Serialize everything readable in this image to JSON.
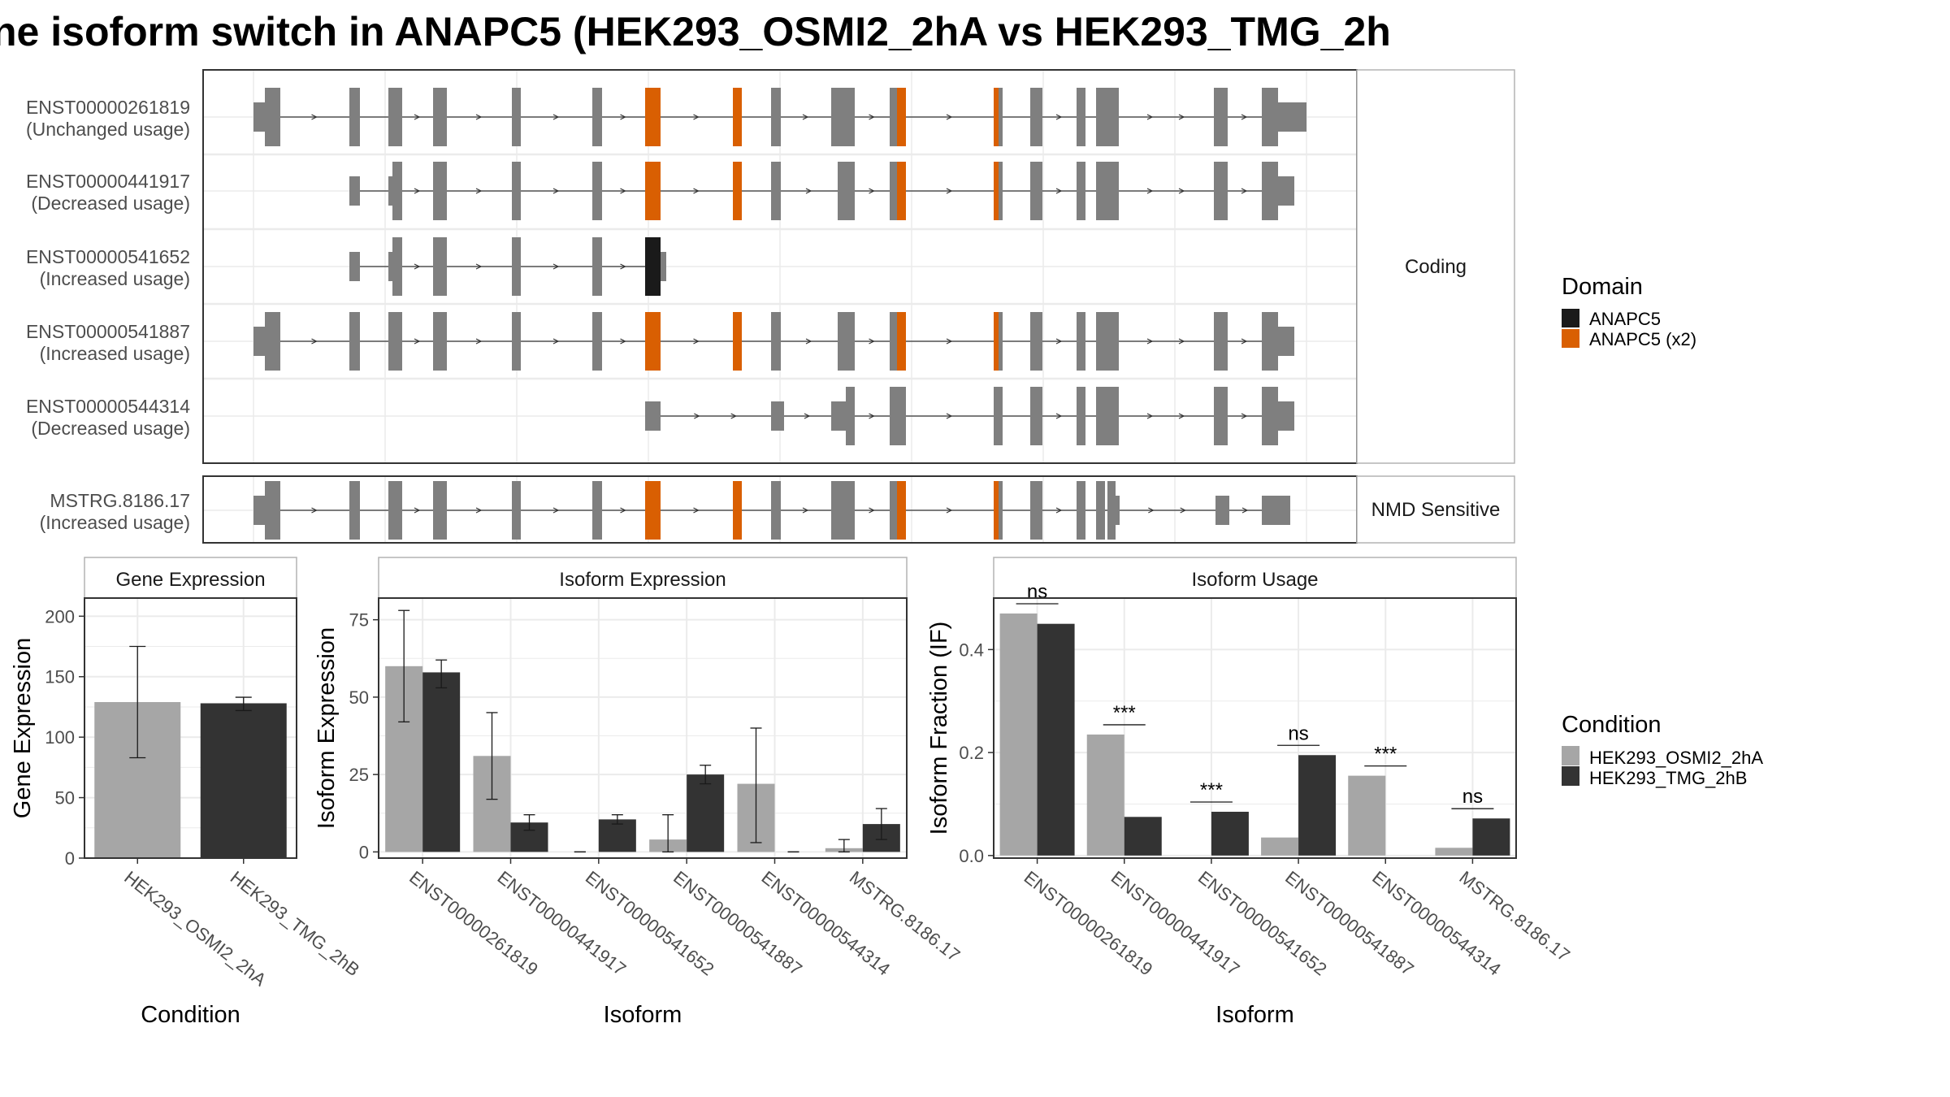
{
  "title": "ne isoform switch in ANAPC5 (HEK293_OSMI2_2hA vs HEK293_TMG_2h",
  "colors": {
    "exon": "#7f7f7f",
    "domain_ANAPC5": "#1a1a1a",
    "domain_ANAPC5_x2": "#d95f02",
    "cond1": "#a6a6a6",
    "cond2": "#333333",
    "grid": "#ebebeb"
  },
  "structure": {
    "coding_strip": "Coding",
    "nmd_strip": "NMD Sensitive",
    "transcripts": [
      {
        "id": "ENST00000261819",
        "usage": "(Unchanged usage)"
      },
      {
        "id": "ENST00000441917",
        "usage": "(Decreased usage)"
      },
      {
        "id": "ENST00000541652",
        "usage": "(Increased usage)"
      },
      {
        "id": "ENST00000541887",
        "usage": "(Increased usage)"
      },
      {
        "id": "ENST00000544314",
        "usage": "(Decreased usage)"
      },
      {
        "id": "MSTRG.8186.17",
        "usage": "(Increased usage)"
      }
    ]
  },
  "legend_domain": {
    "title": "Domain",
    "items": [
      {
        "label": "ANAPC5",
        "color": "#1a1a1a"
      },
      {
        "label": "ANAPC5 (x2)",
        "color": "#d95f02"
      }
    ]
  },
  "legend_condition": {
    "title": "Condition",
    "items": [
      {
        "label": "HEK293_OSMI2_2hA",
        "color": "#a6a6a6"
      },
      {
        "label": "HEK293_TMG_2hB",
        "color": "#333333"
      }
    ]
  },
  "chart_data": [
    {
      "type": "bar",
      "title": "Gene Expression",
      "xlabel": "Condition",
      "ylabel": "Gene Expression",
      "ylim": [
        0,
        215
      ],
      "yticks": [
        0,
        50,
        100,
        150,
        200
      ],
      "categories": [
        "HEK293_OSMI2_2hA",
        "HEK293_TMG_2hB"
      ],
      "values": [
        129,
        128
      ],
      "error_low": [
        83,
        122
      ],
      "error_high": [
        175,
        133
      ]
    },
    {
      "type": "bar",
      "title": "Isoform Expression",
      "xlabel": "Isoform",
      "ylabel": "Isoform Expression",
      "ylim": [
        -2,
        82
      ],
      "yticks": [
        0,
        25,
        50,
        75
      ],
      "categories": [
        "ENST00000261819",
        "ENST00000441917",
        "ENST00000541652",
        "ENST00000541887",
        "ENST00000544314",
        "MSTRG.8186.17"
      ],
      "series": [
        {
          "name": "HEK293_OSMI2_2hA",
          "values": [
            60,
            31,
            0,
            4,
            22,
            1.2
          ],
          "error_low": [
            42,
            17,
            0,
            0,
            3,
            0
          ],
          "error_high": [
            78,
            45,
            0,
            12,
            40,
            4
          ]
        },
        {
          "name": "HEK293_TMG_2hB",
          "values": [
            58,
            9.5,
            10.5,
            25,
            0,
            9
          ],
          "error_low": [
            53,
            7,
            9,
            22,
            0,
            4
          ],
          "error_high": [
            62,
            12,
            12,
            28,
            0,
            14
          ]
        }
      ]
    },
    {
      "type": "bar",
      "title": "Isoform Usage",
      "xlabel": "Isoform",
      "ylabel": "Isoform Fraction (IF)",
      "ylim": [
        -0.005,
        0.5
      ],
      "yticks": [
        0.0,
        0.2,
        0.4
      ],
      "ytick_labels": [
        "0.0",
        "0.2",
        "0.4"
      ],
      "categories": [
        "ENST00000261819",
        "ENST00000441917",
        "ENST00000541652",
        "ENST00000541887",
        "ENST00000544314",
        "MSTRG.8186.17"
      ],
      "series": [
        {
          "name": "HEK293_OSMI2_2hA",
          "values": [
            0.47,
            0.235,
            0.0,
            0.035,
            0.155,
            0.015
          ]
        },
        {
          "name": "HEK293_TMG_2hB",
          "values": [
            0.45,
            0.075,
            0.085,
            0.195,
            0.0,
            0.072
          ]
        }
      ],
      "significance": [
        "ns",
        "***",
        "***",
        "ns",
        "***",
        "ns"
      ]
    }
  ]
}
